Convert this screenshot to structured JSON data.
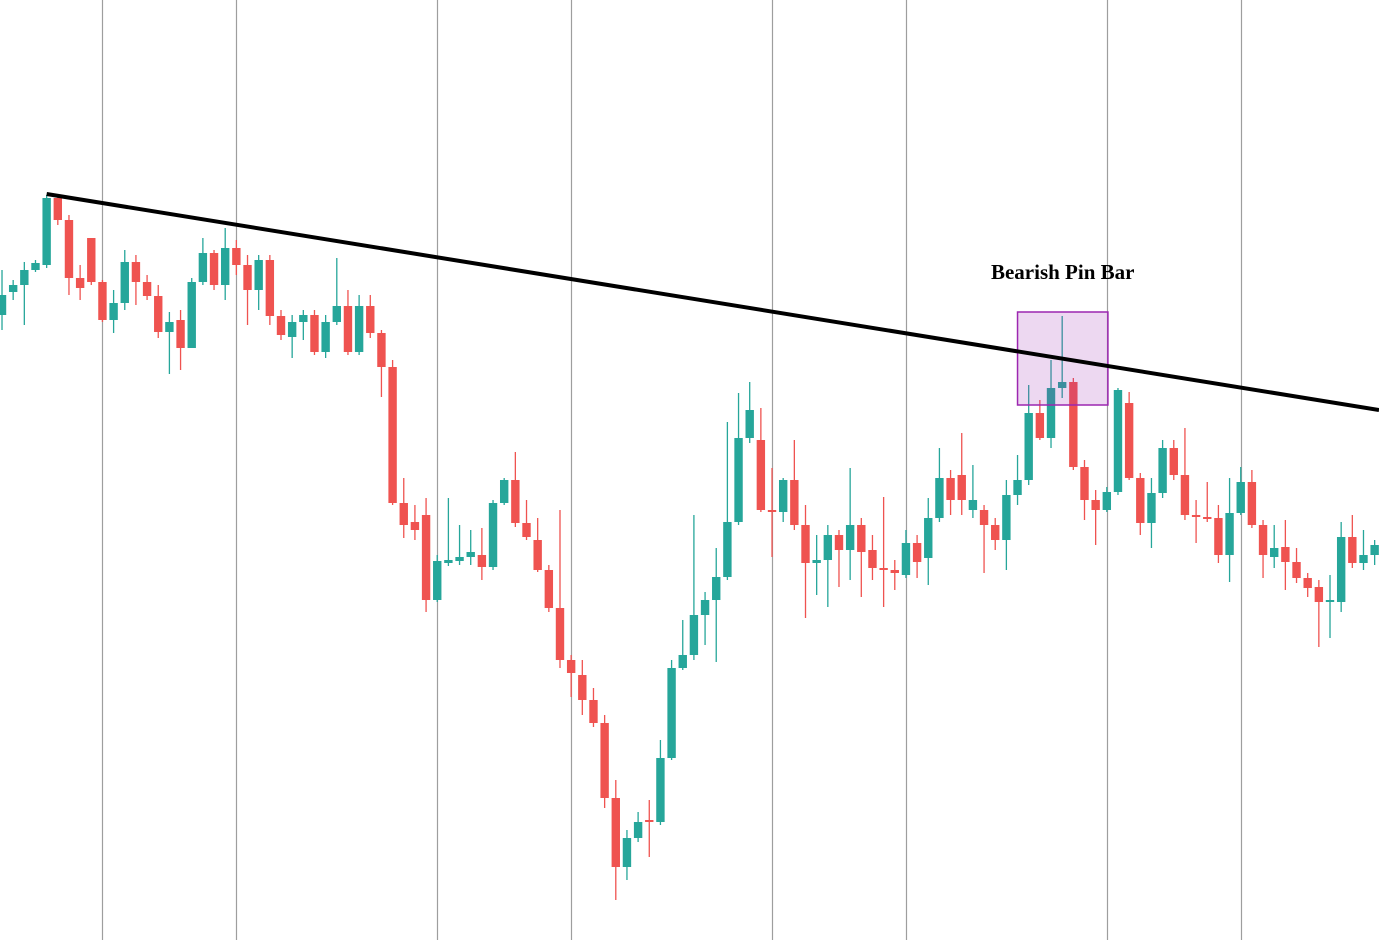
{
  "chart_data": {
    "type": "candlestick",
    "open": [
      625,
      648,
      655,
      670,
      675,
      742,
      720,
      662,
      702,
      658,
      620,
      637,
      678,
      658,
      644,
      608,
      620,
      592,
      658,
      687,
      655,
      692,
      675,
      650,
      680,
      624,
      603,
      618,
      625,
      588,
      618,
      634,
      588,
      634,
      607,
      573,
      437,
      418,
      425,
      340,
      377,
      379,
      383,
      385,
      373,
      437,
      460,
      417,
      400,
      370,
      332,
      280,
      265,
      240,
      217,
      142,
      73,
      102,
      120,
      118,
      182,
      272,
      285,
      325,
      340,
      363,
      418,
      502,
      500,
      430,
      428,
      460,
      415,
      377,
      380,
      405,
      390,
      415,
      390,
      372,
      370,
      365,
      397,
      382,
      422,
      462,
      465,
      430,
      430,
      415,
      400,
      445,
      460,
      527,
      502,
      552,
      558,
      473,
      440,
      430,
      448,
      537,
      462,
      417,
      447,
      492,
      465,
      425,
      423,
      422,
      385,
      427,
      458,
      415,
      383,
      393,
      378,
      362,
      353,
      338,
      338,
      403,
      377,
      385
    ],
    "high": [
      670,
      660,
      678,
      680,
      745,
      745,
      725,
      675,
      702,
      660,
      650,
      690,
      685,
      665,
      655,
      628,
      630,
      662,
      702,
      690,
      712,
      700,
      685,
      685,
      685,
      630,
      625,
      630,
      630,
      625,
      682,
      650,
      645,
      645,
      610,
      580,
      462,
      435,
      442,
      385,
      442,
      415,
      410,
      412,
      440,
      462,
      488,
      440,
      422,
      375,
      430,
      285,
      280,
      252,
      225,
      160,
      110,
      128,
      140,
      200,
      280,
      320,
      425,
      348,
      392,
      518,
      547,
      558,
      532,
      472,
      462,
      500,
      435,
      405,
      415,
      410,
      472,
      422,
      405,
      443,
      380,
      410,
      405,
      442,
      492,
      470,
      507,
      475,
      435,
      422,
      460,
      485,
      555,
      540,
      580,
      624,
      562,
      480,
      450,
      453,
      552,
      548,
      467,
      462,
      500,
      500,
      512,
      440,
      458,
      435,
      462,
      473,
      470,
      420,
      415,
      420,
      392,
      367,
      360,
      365,
      418,
      425,
      410,
      400
    ],
    "low": [
      610,
      640,
      615,
      668,
      672,
      715,
      645,
      640,
      655,
      618,
      607,
      630,
      635,
      640,
      602,
      566,
      570,
      592,
      655,
      650,
      640,
      665,
      615,
      630,
      615,
      600,
      582,
      600,
      585,
      582,
      615,
      585,
      585,
      602,
      543,
      435,
      402,
      400,
      328,
      338,
      374,
      375,
      375,
      360,
      370,
      435,
      413,
      400,
      368,
      328,
      272,
      243,
      225,
      213,
      132,
      40,
      60,
      98,
      83,
      115,
      180,
      270,
      280,
      295,
      278,
      360,
      415,
      497,
      428,
      383,
      418,
      410,
      322,
      345,
      333,
      353,
      360,
      343,
      360,
      333,
      350,
      362,
      362,
      355,
      418,
      425,
      425,
      422,
      367,
      390,
      370,
      435,
      455,
      500,
      492,
      542,
      470,
      420,
      395,
      428,
      445,
      460,
      405,
      392,
      442,
      460,
      420,
      397,
      418,
      377,
      358,
      425,
      412,
      362,
      372,
      350,
      357,
      343,
      293,
      302,
      328,
      372,
      370,
      375
    ],
    "close": [
      645,
      655,
      670,
      677,
      742,
      720,
      662,
      652,
      658,
      620,
      637,
      678,
      658,
      644,
      608,
      618,
      592,
      658,
      687,
      655,
      692,
      675,
      650,
      680,
      624,
      605,
      618,
      625,
      588,
      618,
      634,
      588,
      634,
      607,
      573,
      437,
      415,
      410,
      340,
      379,
      380,
      383,
      388,
      373,
      437,
      460,
      417,
      403,
      370,
      332,
      280,
      267,
      240,
      217,
      142,
      73,
      102,
      118,
      118,
      182,
      272,
      285,
      325,
      340,
      363,
      418,
      502,
      530,
      430,
      428,
      460,
      415,
      377,
      380,
      405,
      390,
      415,
      388,
      372,
      370,
      367,
      397,
      378,
      422,
      462,
      440,
      440,
      440,
      415,
      400,
      445,
      460,
      527,
      502,
      552,
      558,
      473,
      440,
      430,
      448,
      550,
      462,
      417,
      447,
      492,
      465,
      425,
      423,
      421,
      385,
      427,
      458,
      415,
      385,
      392,
      378,
      362,
      352,
      338,
      340,
      403,
      377,
      385,
      395
    ],
    "up_color": "#26a69a",
    "down_color": "#ef5350",
    "xlim": [
      -0.18,
      123.39
    ],
    "ylim": [
      0,
      940
    ],
    "xticks": [
      9,
      21,
      39,
      51,
      69,
      81,
      99,
      111
    ],
    "grid": true,
    "trendline": {
      "x": [
        4,
        123.39
      ],
      "y": [
        746,
        530
      ],
      "color": "#000000"
    },
    "highlight": {
      "x": [
        91,
        99.1
      ],
      "y": [
        535,
        628
      ],
      "label": "Bearish Pin Bar",
      "color": "#9c27b0"
    }
  }
}
